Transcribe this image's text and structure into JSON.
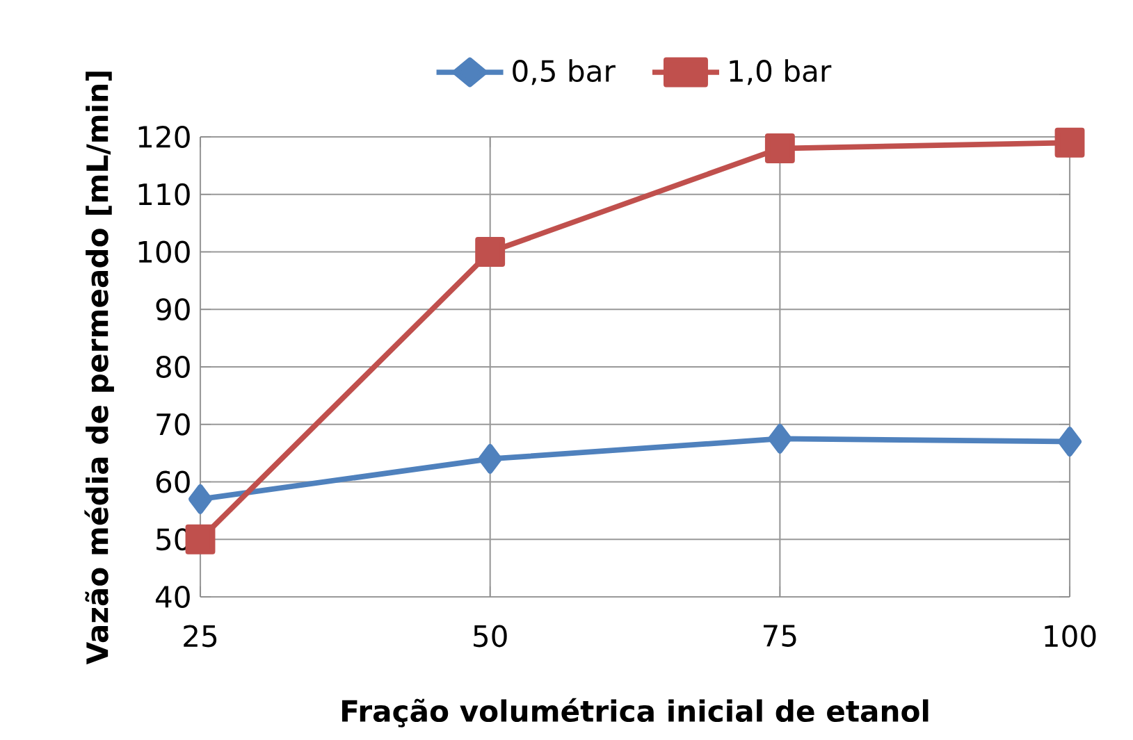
{
  "chart_data": {
    "type": "line",
    "xlabel": "Fração volumétrica inicial de etanol",
    "ylabel": "Vazão média de permeado [mL/min]",
    "categories": [
      "25",
      "50",
      "75",
      "100"
    ],
    "series": [
      {
        "name": "0,5 bar",
        "color": "#4f81bd",
        "marker": "diamond",
        "values": [
          57,
          64,
          67.5,
          67
        ]
      },
      {
        "name": "1,0 bar",
        "color": "#c0504d",
        "marker": "square",
        "values": [
          50,
          100,
          118,
          119
        ]
      }
    ],
    "ylim": [
      40,
      120
    ],
    "yticks": [
      40,
      50,
      60,
      70,
      80,
      90,
      100,
      110,
      120
    ],
    "grid": true,
    "legend": "top",
    "line_style": "solid"
  }
}
